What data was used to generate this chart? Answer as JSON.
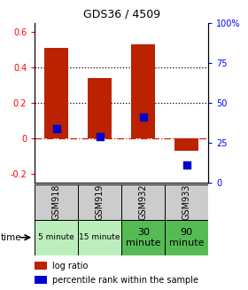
{
  "title": "GDS36 / 4509",
  "samples": [
    "GSM918",
    "GSM919",
    "GSM932",
    "GSM933"
  ],
  "time_labels_short": [
    "5 minute",
    "15 minute"
  ],
  "time_labels_long": [
    "30\nminute",
    "90\nminute"
  ],
  "time_bg_light": "#bbeebb",
  "time_bg_dark": "#55bb55",
  "sample_bg": "#cccccc",
  "log_ratios": [
    0.51,
    0.34,
    0.53,
    -0.07
  ],
  "percentile_ranks_pct": [
    34,
    29,
    41,
    11
  ],
  "bar_color": "#bb2200",
  "dot_color": "#0000cc",
  "ylim_left": [
    -0.25,
    0.65
  ],
  "ylim_right": [
    0,
    100
  ],
  "yticks_left": [
    -0.2,
    0.0,
    0.2,
    0.4,
    0.6
  ],
  "ytick_labels_left": [
    "-0.2",
    "0",
    "0.2",
    "0.4",
    "0.6"
  ],
  "yticks_right": [
    0,
    25,
    50,
    75,
    100
  ],
  "ytick_labels_right": [
    "0",
    "25",
    "50",
    "75",
    "100%"
  ],
  "bar_width": 0.55,
  "dot_size": 28,
  "hline_color_zero": "#cc2200",
  "hline_color_dotted": "black"
}
